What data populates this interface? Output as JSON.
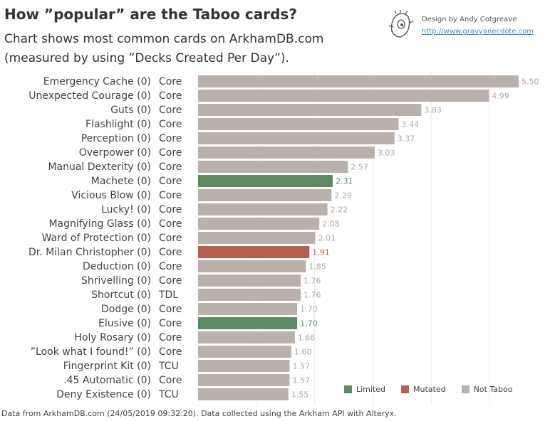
{
  "header": {
    "title": "How ”popular” are the Taboo cards?",
    "subtitle_line1": "Chart shows most common cards on ArkhamDB.com",
    "subtitle_line2": "(measured by using ”Decks Created Per Day”)."
  },
  "credit": {
    "author": "Design by Andy Cotgreave",
    "link": "http://www.gravyanecdote.com",
    "logo_icon": "cartoon-face-icon"
  },
  "colors": {
    "Limited": "#5e8a63",
    "Mutated": "#b45f4f",
    "Not Taboo": "#bab0ac",
    "label_default": "#b0a8a5"
  },
  "legend": {
    "placement": "bottom-right",
    "items": [
      "Limited",
      "Mutated",
      "Not Taboo"
    ]
  },
  "chart_data": {
    "type": "bar",
    "orientation": "horizontal",
    "xlim": [
      0,
      5.5
    ],
    "grid": "vertical",
    "categories": [
      "Emergency Cache (0)",
      "Unexpected Courage (0)",
      "Guts (0)",
      "Flashlight (0)",
      "Perception (0)",
      "Overpower (0)",
      "Manual Dexterity (0)",
      "Machete (0)",
      "Vicious Blow (0)",
      "Lucky! (0)",
      "Magnifying Glass (0)",
      "Ward of Protection (0)",
      "Dr. Milan Christopher (0)",
      "Deduction (0)",
      "Shrivelling (0)",
      "Shortcut (0)",
      "Dodge (0)",
      "Elusive (0)",
      "Holy Rosary (0)",
      "”Look what I found!” (0)",
      "Fingerprint Kit (0)",
      ".45 Automatic (0)",
      "Deny Existence (0)"
    ],
    "sets": [
      "Core",
      "Core",
      "Core",
      "Core",
      "Core",
      "Core",
      "Core",
      "Core",
      "Core",
      "Core",
      "Core",
      "Core",
      "Core",
      "Core",
      "Core",
      "TDL",
      "Core",
      "Core",
      "Core",
      "Core",
      "TCU",
      "Core",
      "TCU"
    ],
    "values": [
      5.5,
      4.99,
      3.83,
      3.44,
      3.37,
      3.03,
      2.57,
      2.31,
      2.29,
      2.22,
      2.08,
      2.01,
      1.91,
      1.85,
      1.76,
      1.76,
      1.7,
      1.7,
      1.66,
      1.6,
      1.57,
      1.57,
      1.55
    ],
    "value_labels": [
      "5.50",
      "4.99",
      "3.83",
      "3.44",
      "3.37",
      "3.03",
      "2.57",
      "2.31",
      "2.29",
      "2.22",
      "2.08",
      "2.01",
      "1.91",
      "1.85",
      "1.76",
      "1.76",
      "1.70",
      "1.70",
      "1.66",
      "1.60",
      "1.57",
      "1.57",
      "1.55"
    ],
    "status": [
      "Not Taboo",
      "Not Taboo",
      "Not Taboo",
      "Not Taboo",
      "Not Taboo",
      "Not Taboo",
      "Not Taboo",
      "Limited",
      "Not Taboo",
      "Not Taboo",
      "Not Taboo",
      "Not Taboo",
      "Mutated",
      "Not Taboo",
      "Not Taboo",
      "Not Taboo",
      "Not Taboo",
      "Limited",
      "Not Taboo",
      "Not Taboo",
      "Not Taboo",
      "Not Taboo",
      "Not Taboo"
    ]
  },
  "footer": {
    "note": "Data from ArkhamDB.com (24/05/2019 09:32:20). Data collected using the Arkham API with Alteryx."
  }
}
